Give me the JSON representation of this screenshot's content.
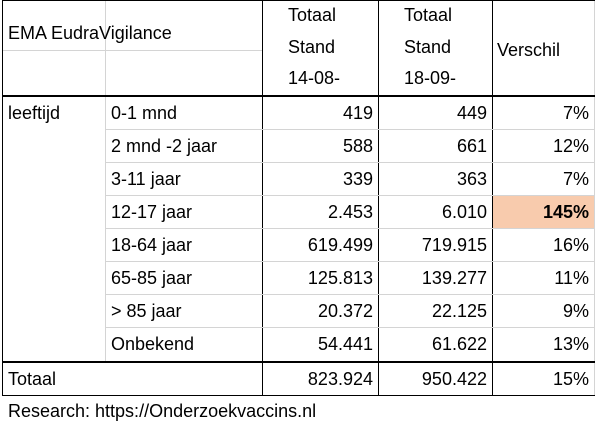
{
  "header": {
    "title": "EMA EudraVigilance",
    "col1": [
      "Totaal",
      "Stand",
      "14-08-"
    ],
    "col2": [
      "Totaal",
      "Stand",
      "18-09-"
    ],
    "diff": "Verschil"
  },
  "group_label": "leeftijd",
  "rows": [
    {
      "label": "0-1 mnd",
      "col1": "419",
      "col2": "449",
      "diff": "7%"
    },
    {
      "label": "2 mnd -2 jaar",
      "col1": "588",
      "col2": "661",
      "diff": "12%"
    },
    {
      "label": "3-11 jaar",
      "col1": "339",
      "col2": "363",
      "diff": "7%"
    },
    {
      "label": "12-17 jaar",
      "col1": "2.453",
      "col2": "6.010",
      "diff": "145%",
      "highlight": "#f8cbad"
    },
    {
      "label": "18-64 jaar",
      "col1": "619.499",
      "col2": "719.915",
      "diff": "16%"
    },
    {
      "label": "65-85 jaar",
      "col1": "125.813",
      "col2": "139.277",
      "diff": "11%"
    },
    {
      "label": "> 85 jaar",
      "col1": "20.372",
      "col2": "22.125",
      "diff": "9%"
    },
    {
      "label": "Onbekend",
      "col1": "54.441",
      "col2": "61.622",
      "diff": "13%"
    }
  ],
  "total": {
    "label": "Totaal",
    "col1": "823.924",
    "col2": "950.422",
    "diff": "15%"
  },
  "footer": "Research: https://Onderzoekvaccins.nl"
}
